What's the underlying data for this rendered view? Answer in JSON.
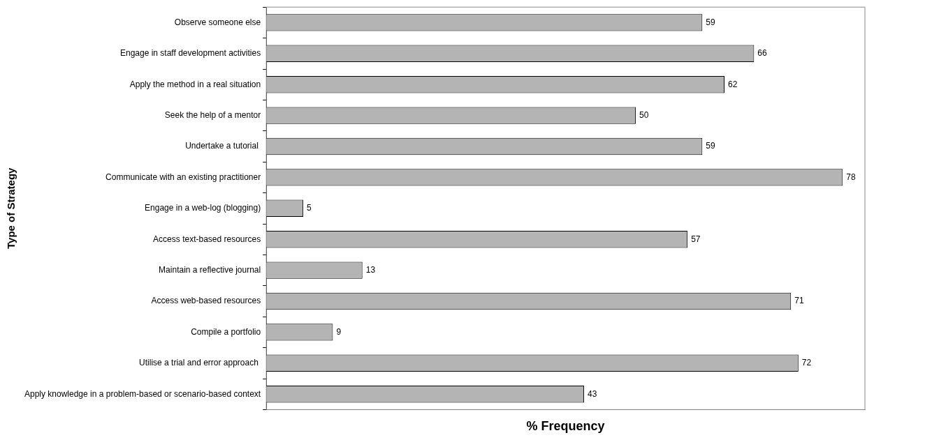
{
  "chart_data": {
    "type": "bar",
    "orientation": "horizontal",
    "xlabel": "% Frequency",
    "ylabel": "Type of Strategy",
    "categories": [
      "Observe someone else",
      "Engage in staff development activities",
      "Apply the method in a real situation",
      "Seek the help of a mentor",
      "Undertake a tutorial ",
      "Communicate with an existing practitioner",
      "Engage in a web-log (blogging)",
      "Access text-based resources",
      "Maintain a reflective journal",
      "Access web-based resources",
      "Compile a portfolio",
      "Utilise a trial and error approach ",
      "Apply knowledge in a problem-based or scenario-based context"
    ],
    "values": [
      59,
      66,
      62,
      50,
      59,
      78,
      5,
      57,
      13,
      71,
      9,
      72,
      43
    ],
    "color": "#b4b4b4",
    "xlim": [
      0,
      81
    ],
    "data_labels": true,
    "tick_labels": "y",
    "grid": false,
    "legend": false
  }
}
